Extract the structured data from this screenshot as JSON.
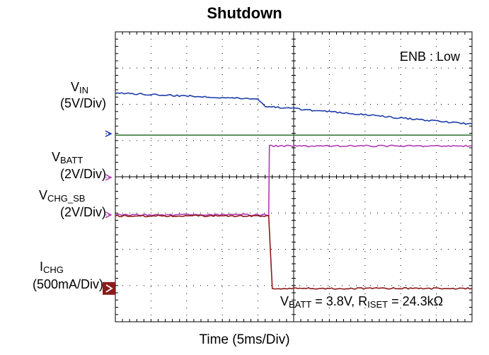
{
  "chart_data": {
    "type": "line",
    "title": "Shutdown",
    "xlabel": "Time (5ms/Div)",
    "annotation_top": "ENB : Low",
    "annotation_bottom": {
      "p1": "V",
      "p1_sub": "BATT",
      "p2": " = 3.8V, R",
      "p2_sub": "ISET",
      "p3": " = 24.3kΩ"
    },
    "channel_labels": [
      {
        "main": "V",
        "sub": "IN",
        "scale": "(5V/Div)"
      },
      {
        "main": "V",
        "sub": "BATT",
        "scale": "(2V/Div)"
      },
      {
        "main": "V",
        "sub": "CHG_SB",
        "scale": "(2V/Div)"
      },
      {
        "main": "I",
        "sub": "CHG",
        "scale": "(500mA/Div)"
      }
    ],
    "x_divisions": 10,
    "y_divisions": 8,
    "x_unit": "ms",
    "time_per_div": 5,
    "colors": {
      "vin": "#1f3ca8",
      "ground": "#3a7a3a",
      "vbatt": "#b23ab2",
      "ichg": "#8b1a1a",
      "grid": "#000000"
    },
    "series": [
      {
        "name": "VIN",
        "color_key": "vin",
        "unit": "V",
        "volts_per_div": 5,
        "x": [
          0,
          20,
          21,
          50
        ],
        "y": [
          5.8,
          5.0,
          4.0,
          1.5
        ]
      },
      {
        "name": "VBATT",
        "color_key": "vbatt",
        "unit": "V",
        "volts_per_div": 2,
        "x": [
          0,
          21.5,
          21.6,
          50
        ],
        "y": [
          0,
          0,
          3.8,
          3.8
        ]
      },
      {
        "name": "ICHG",
        "color_key": "ichg",
        "unit": "mA",
        "amps_per_div": 500,
        "x": [
          0,
          21.5,
          22.0,
          50
        ],
        "y": [
          1000,
          1000,
          0,
          0
        ]
      }
    ]
  }
}
